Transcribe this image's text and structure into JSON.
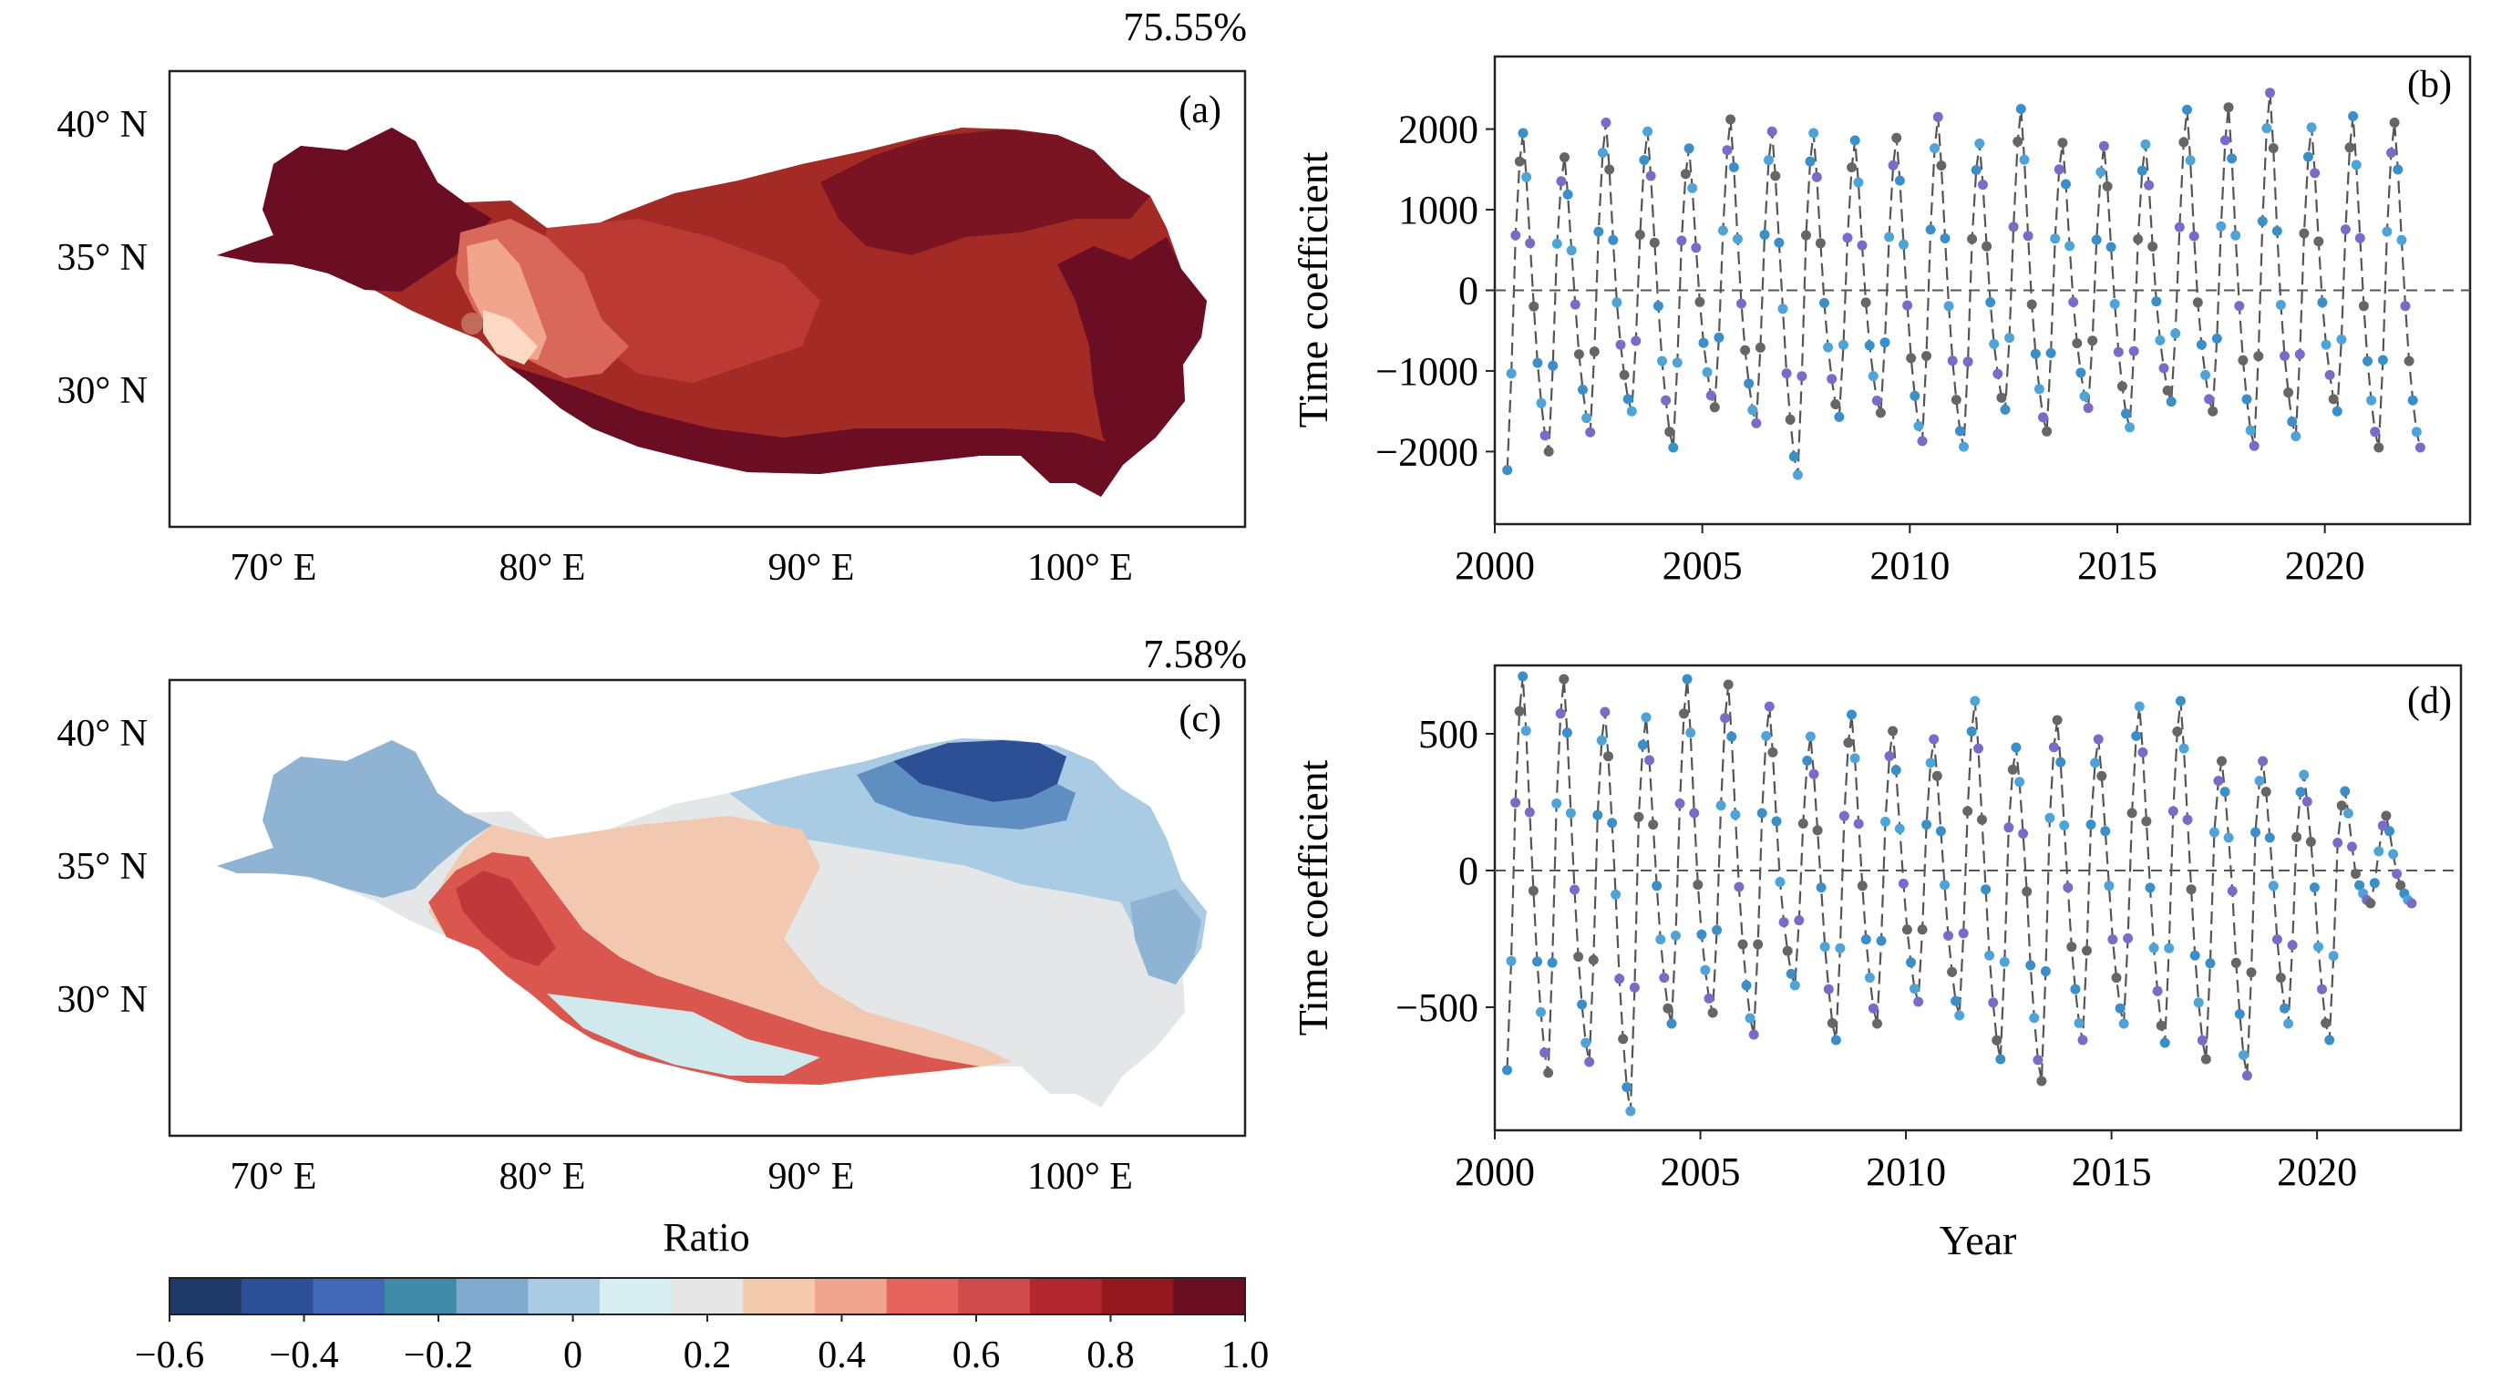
{
  "chart_data": [
    {
      "type": "heatmap",
      "panel": "(a)",
      "variance": "75.55%",
      "x_ticks": [
        "70° E",
        "80° E",
        "90° E",
        "100° E"
      ],
      "y_ticks": [
        "40° N",
        "35° N",
        "30° N"
      ],
      "x_tick_values": [
        70,
        80,
        90,
        100
      ],
      "y_tick_values": [
        40,
        35,
        30
      ],
      "xlim": [
        66,
        106
      ],
      "ylim": [
        26,
        43
      ],
      "colors": [
        "#6b0e24",
        "#9f1f22",
        "#be3b35",
        "#d9685a",
        "#f1a58c",
        "#fbd9c4"
      ]
    },
    {
      "type": "line",
      "panel": "(b)",
      "ylabel": "Time coefficient",
      "xlim": [
        2000,
        2023.5
      ],
      "ylim": [
        -2900,
        2900
      ],
      "x_ticks": [
        2000,
        2005,
        2010,
        2015,
        2020
      ],
      "y_ticks": [
        -2000,
        -1000,
        0,
        1000,
        2000
      ],
      "peaks": [
        1950,
        1650,
        2080,
        1970,
        1760,
        2120,
        1970,
        1950,
        1860,
        1890,
        2150,
        1820,
        2250,
        1830,
        1790,
        1810,
        2240,
        2270,
        2450,
        2020,
        2160,
        2080
      ],
      "troughs": [
        -2230,
        -2000,
        -1760,
        -1500,
        -1950,
        -1450,
        -1650,
        -2290,
        -1570,
        -1520,
        -1870,
        -1940,
        -1480,
        -1750,
        -1460,
        -1700,
        -1380,
        -1500,
        -1930,
        -1810,
        -1500,
        -1950
      ],
      "line_color": "#555555",
      "marker_colors": [
        "#3a8fc8",
        "#4ea3d9",
        "#7b6bc9",
        "#666666"
      ]
    },
    {
      "type": "heatmap",
      "panel": "(c)",
      "variance": "7.58%",
      "x_ticks": [
        "70° E",
        "80° E",
        "90° E",
        "100° E"
      ],
      "y_ticks": [
        "40° N",
        "35° N",
        "30° N"
      ],
      "x_tick_values": [
        70,
        80,
        90,
        100
      ],
      "y_tick_values": [
        40,
        35,
        30
      ],
      "xlim": [
        66,
        106
      ],
      "ylim": [
        26,
        43
      ],
      "colors": [
        "#2c4f96",
        "#7ea8cc",
        "#b9d3e6",
        "#e4e6e8",
        "#f3c8b0",
        "#d9574f"
      ]
    },
    {
      "type": "line",
      "panel": "(d)",
      "xlabel": "Year",
      "ylabel": "Time coefficient",
      "xlim": [
        2000,
        2023.5
      ],
      "ylim": [
        -950,
        750
      ],
      "x_ticks": [
        2000,
        2005,
        2010,
        2015,
        2020
      ],
      "y_ticks": [
        -500,
        0,
        500
      ],
      "peaks": [
        710,
        700,
        580,
        560,
        700,
        680,
        600,
        490,
        570,
        510,
        480,
        620,
        450,
        550,
        480,
        600,
        620,
        400,
        400,
        350,
        290,
        200
      ],
      "troughs": [
        -730,
        -740,
        -700,
        -880,
        -560,
        -520,
        -600,
        -420,
        -620,
        -560,
        -480,
        -530,
        -690,
        -770,
        -620,
        -560,
        -630,
        -690,
        -750,
        -560,
        -620,
        -120
      ],
      "line_color": "#555555",
      "marker_colors": [
        "#3a8fc8",
        "#4ea3d9",
        "#7b6bc9",
        "#666666"
      ]
    }
  ],
  "colorbar": {
    "label": "Ratio",
    "ticks": [
      "−0.6",
      "−0.4",
      "−0.2",
      "0",
      "0.2",
      "0.4",
      "0.6",
      "0.8",
      "1.0"
    ],
    "colors": [
      "#1f3a68",
      "#2c4f96",
      "#4367b7",
      "#3f8aa6",
      "#7fa9cf",
      "#a9cbe3",
      "#d8eef0",
      "#e6e6e6",
      "#f3c9ab",
      "#f1a591",
      "#e5625d",
      "#cf4a4a",
      "#b3282e",
      "#95171f",
      "#6b0e24"
    ]
  }
}
